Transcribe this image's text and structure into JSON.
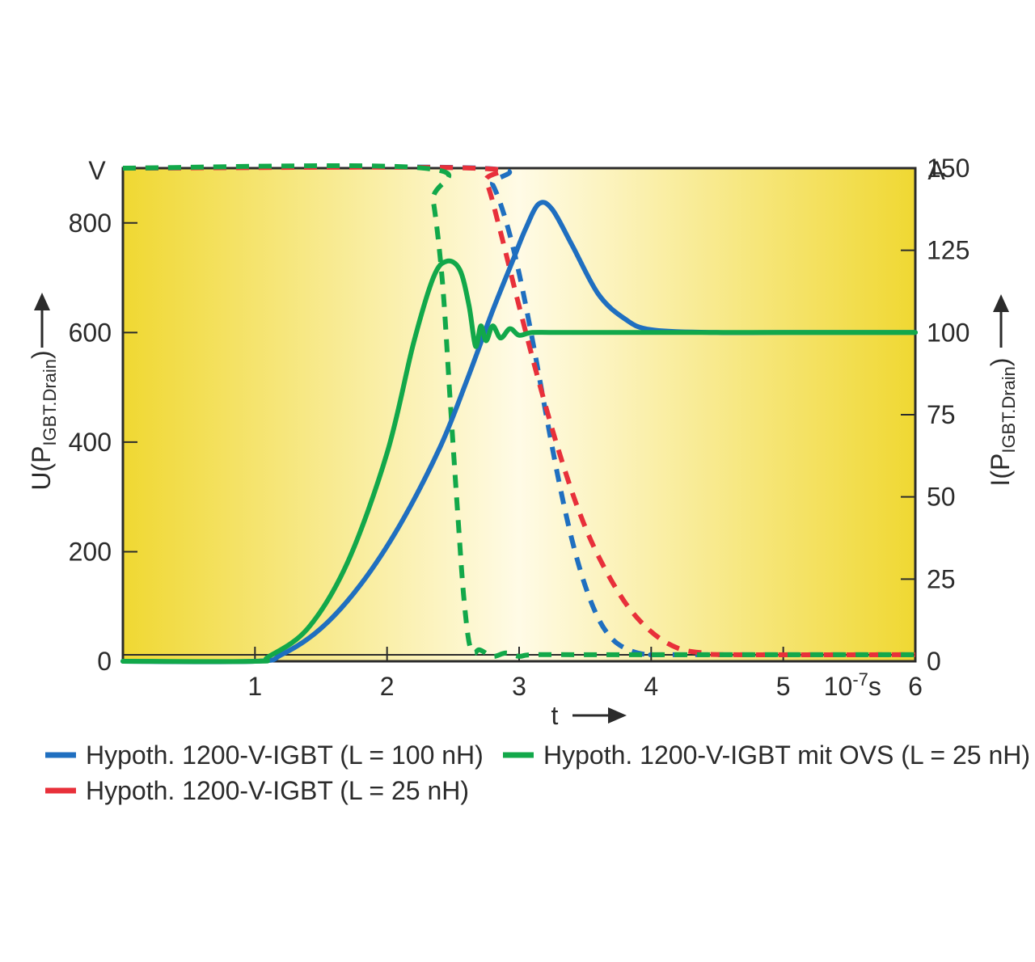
{
  "chart_data": {
    "type": "line",
    "x_label": "t",
    "x_unit_base": "10",
    "x_unit_exp": "-7",
    "x_unit_suffix": "s",
    "x_ticks": [
      1,
      2,
      3,
      4,
      5,
      6
    ],
    "x_tick_labels": [
      "1",
      "2",
      "3",
      "4",
      "5",
      "6"
    ],
    "xlim": [
      0,
      6
    ],
    "y_left": {
      "label_main": "U(P",
      "label_sub": "IGBT.Drain",
      "label_close": ")",
      "unit": "V",
      "ylim": [
        0,
        900
      ],
      "ticks": [
        0,
        200,
        400,
        600,
        800
      ],
      "tick_labels": [
        "0",
        "200",
        "400",
        "600",
        "800"
      ]
    },
    "y_right": {
      "label_main": "I(P",
      "label_sub": "IGBT.Drain",
      "label_close": ")",
      "unit": "A",
      "ylim": [
        0,
        150
      ],
      "ticks": [
        0,
        25,
        50,
        75,
        100,
        125,
        150
      ],
      "tick_labels": [
        "0",
        "25",
        "50",
        "75",
        "100",
        "125",
        "150"
      ]
    },
    "colors": {
      "blue": "#1f6fc0",
      "red": "#e8303a",
      "green": "#12a84a",
      "bg_edge": "#f0d832",
      "bg_center": "#fffbe6",
      "axis": "#2b2b2b"
    },
    "legend": [
      {
        "name": "Hypoth. 1200-V-IGBT (L = 100 nH)",
        "color": "#1f6fc0"
      },
      {
        "name": "Hypoth. 1200-V-IGBT mit OVS (L = 25 nH)",
        "color": "#12a84a"
      },
      {
        "name": "Hypoth. 1200-V-IGBT (L = 25 nH)",
        "color": "#e8303a"
      }
    ],
    "series": [
      {
        "kind": "voltage",
        "axis": "left",
        "style": "solid",
        "color": "#1f6fc0",
        "x": [
          0,
          1,
          1.2,
          1.5,
          1.8,
          2.1,
          2.4,
          2.6,
          2.8,
          2.95,
          3.05,
          3.15,
          3.25,
          3.4,
          3.6,
          3.8,
          4.0,
          4.5,
          5,
          6
        ],
        "y": [
          0,
          0,
          12,
          60,
          140,
          250,
          390,
          510,
          640,
          730,
          790,
          835,
          825,
          760,
          670,
          625,
          605,
          600,
          600,
          600
        ]
      },
      {
        "kind": "voltage",
        "axis": "left",
        "style": "solid",
        "color": "#12a84a",
        "x": [
          0,
          1,
          1.1,
          1.4,
          1.7,
          2.0,
          2.2,
          2.35,
          2.45,
          2.55,
          2.62,
          2.67,
          2.71,
          2.75,
          2.8,
          2.86,
          2.93,
          3.0,
          3.1,
          3.3,
          4,
          5,
          6
        ],
        "y": [
          0,
          0,
          8,
          60,
          180,
          380,
          580,
          700,
          730,
          715,
          650,
          575,
          612,
          585,
          612,
          590,
          607,
          595,
          600,
          600,
          600,
          600,
          600
        ]
      },
      {
        "kind": "current",
        "axis": "right",
        "style": "dashed",
        "color": "#1f6fc0",
        "x": [
          0,
          2.7,
          2.8,
          2.9,
          3.0,
          3.1,
          3.2,
          3.3,
          3.4,
          3.5,
          3.6,
          3.7,
          3.8,
          3.9,
          4.0,
          4.2,
          6
        ],
        "y": [
          150,
          150,
          145,
          134,
          118,
          98,
          76,
          55,
          37,
          23,
          13,
          7,
          4,
          2.5,
          2,
          2,
          2
        ]
      },
      {
        "kind": "current",
        "axis": "right",
        "style": "dashed",
        "color": "#e8303a",
        "x": [
          0,
          2.65,
          2.75,
          2.85,
          3.0,
          3.15,
          3.3,
          3.45,
          3.6,
          3.8,
          4.0,
          4.2,
          4.4,
          4.6,
          6
        ],
        "y": [
          150,
          150,
          146,
          132,
          108,
          85,
          64,
          46,
          32,
          18,
          9,
          4,
          2.5,
          2,
          2
        ]
      },
      {
        "kind": "current",
        "axis": "right",
        "style": "dashed",
        "color": "#12a84a",
        "x": [
          0,
          2.28,
          2.35,
          2.42,
          2.48,
          2.54,
          2.58,
          2.62,
          2.66,
          2.7,
          2.8,
          2.9,
          3.0,
          3.1,
          3.5,
          4,
          6
        ],
        "y": [
          150,
          150,
          140,
          115,
          78,
          42,
          20,
          6,
          2.5,
          3.5,
          1.5,
          2.5,
          1.5,
          2,
          2,
          2,
          2
        ]
      }
    ]
  }
}
